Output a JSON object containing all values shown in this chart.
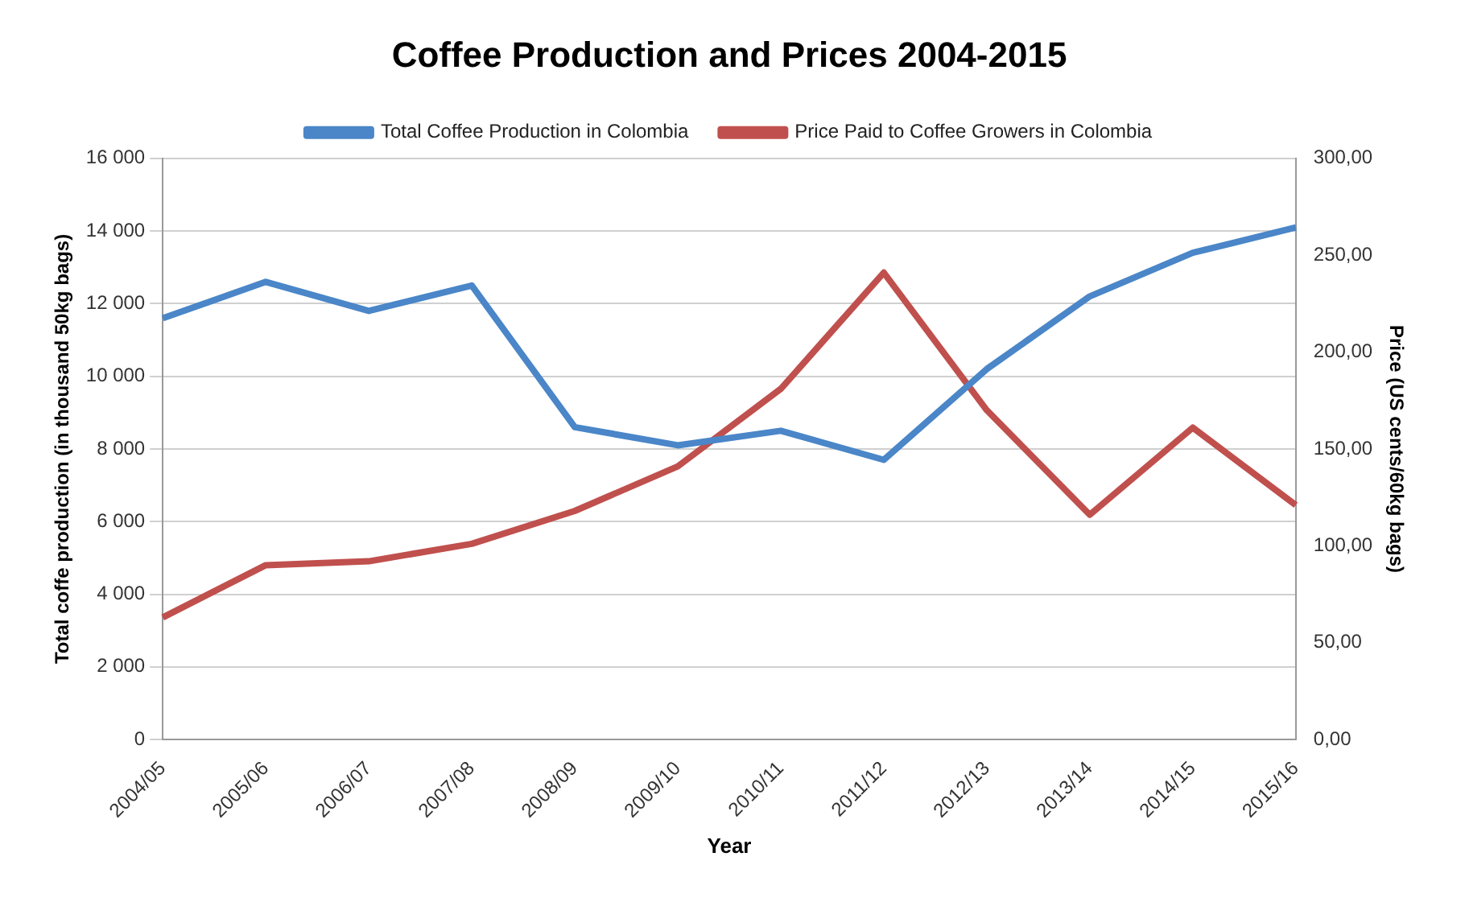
{
  "chart_data": {
    "type": "line",
    "title": "Coffee Production and Prices 2004-2015",
    "xlabel": "Year",
    "ylabel": "Total coffe production (in thousand 50kg bags)",
    "y2label": "Price (US cents/60kg bags)",
    "categories": [
      "2004/05",
      "2005/06",
      "2006/07",
      "2007/08",
      "2008/09",
      "2009/10",
      "2010/11",
      "2011/12",
      "2012/13",
      "2013/14",
      "2014/15",
      "2015/16"
    ],
    "series": [
      {
        "name": "Total Coffee Production in Colombia",
        "color": "#4a86c8",
        "values": [
          11600,
          12600,
          11800,
          12500,
          8600,
          8100,
          8500,
          7700,
          10200,
          12200,
          13400,
          14100
        ]
      },
      {
        "name": "Price Paid to Coffee Growers in Colombia",
        "color": "#c0504d",
        "axis": "y2",
        "values": [
          63,
          90,
          92,
          101,
          118,
          141,
          181,
          241,
          170,
          116,
          161,
          121
        ]
      }
    ],
    "ylim": [
      0,
      16000
    ],
    "yticks": [
      {
        "value": 0,
        "label": "0"
      },
      {
        "value": 2000,
        "label": "2 000"
      },
      {
        "value": 4000,
        "label": "4 000"
      },
      {
        "value": 6000,
        "label": "6 000"
      },
      {
        "value": 8000,
        "label": "8 000"
      },
      {
        "value": 10000,
        "label": "10 000"
      },
      {
        "value": 12000,
        "label": "12 000"
      },
      {
        "value": 14000,
        "label": "14 000"
      },
      {
        "value": 16000,
        "label": "16 000"
      }
    ],
    "y2lim": [
      0,
      300
    ],
    "y2ticks": [
      {
        "value": 0,
        "label": "0,00"
      },
      {
        "value": 50,
        "label": "50,00"
      },
      {
        "value": 100,
        "label": "100,00"
      },
      {
        "value": 150,
        "label": "150,00"
      },
      {
        "value": 200,
        "label": "200,00"
      },
      {
        "value": 250,
        "label": "250,00"
      },
      {
        "value": 300,
        "label": "300,00"
      }
    ],
    "grid": "y",
    "legend": "top",
    "marker": "none",
    "line_style": "solid"
  }
}
